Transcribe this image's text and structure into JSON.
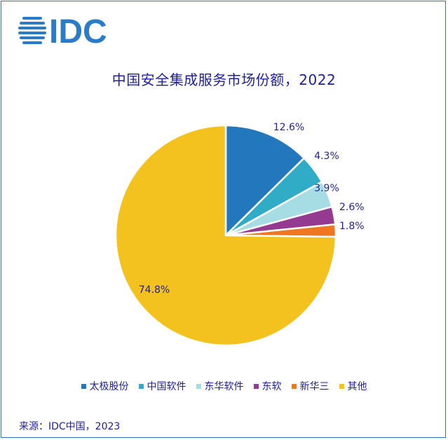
{
  "logo": {
    "text": "IDC",
    "color": "#2b7cc7"
  },
  "chart_data": {
    "type": "pie",
    "title": "中国安全集成服务市场份额，2022",
    "categories": [
      "太极股份",
      "中国软件",
      "东华软件",
      "东软",
      "新华三",
      "其他"
    ],
    "values": [
      12.6,
      4.3,
      3.9,
      2.6,
      1.8,
      74.8
    ],
    "labels": [
      "12.6%",
      "4.3%",
      "3.9%",
      "2.6%",
      "1.8%",
      "74.8%"
    ],
    "colors": [
      "#2378bd",
      "#30acc6",
      "#a6dde4",
      "#943b91",
      "#ef7722",
      "#f3c21f"
    ],
    "start": "12 o'clock, clockwise",
    "legend_position": "bottom"
  },
  "source": "来源：IDC中国，2023"
}
